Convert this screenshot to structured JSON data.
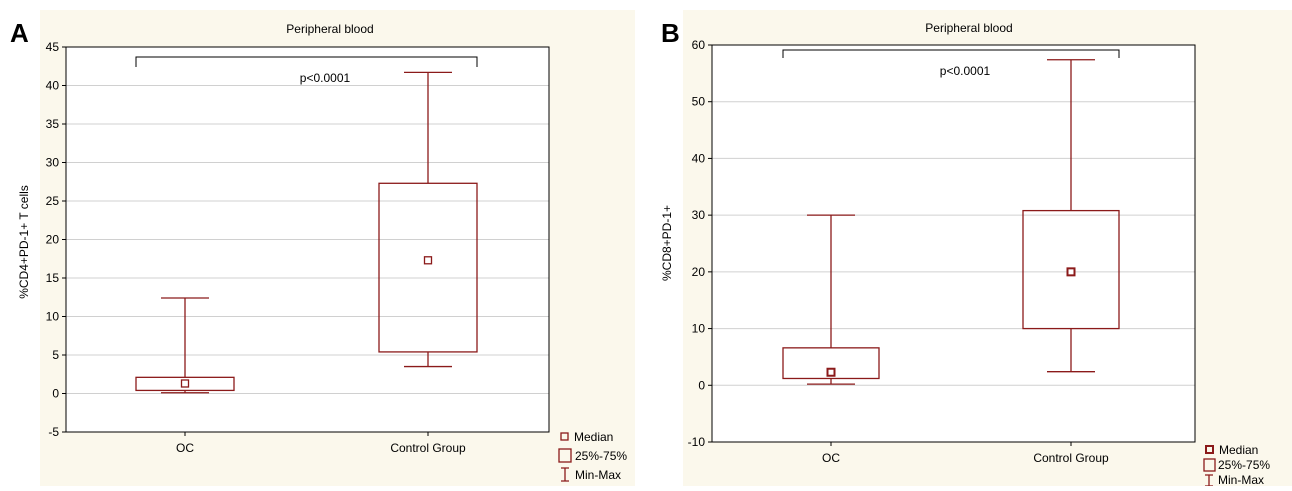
{
  "colors": {
    "box": "#8b1a1a",
    "panel_bg": "#fbf8ec",
    "grid": "#d0d0d0"
  },
  "legend": {
    "median": "Median",
    "box": "25%-75%",
    "whisker": "Min-Max"
  },
  "chart_data": [
    {
      "panel": "A",
      "type": "box",
      "title": "Peripheral blood",
      "xlabel": "",
      "ylabel": "%CD4+PD-1+ T cells",
      "ylim": [
        -5,
        45
      ],
      "yticks": [
        -5,
        0,
        5,
        10,
        15,
        20,
        25,
        30,
        35,
        40,
        45
      ],
      "grid": true,
      "legend_position": "bottom-right",
      "annotation": "p<0.0001",
      "categories": [
        "OC",
        "Control Group"
      ],
      "boxes": [
        {
          "name": "OC",
          "min": 0.1,
          "q1": 0.4,
          "median": 1.3,
          "q3": 2.1,
          "max": 12.4
        },
        {
          "name": "Control Group",
          "min": 3.5,
          "q1": 5.4,
          "median": 17.3,
          "q3": 27.3,
          "max": 41.7
        }
      ]
    },
    {
      "panel": "B",
      "type": "box",
      "title": "Peripheral blood",
      "xlabel": "",
      "ylabel": "%CD8+PD-1+",
      "ylim": [
        -10,
        60
      ],
      "yticks": [
        -10,
        0,
        10,
        20,
        30,
        40,
        50,
        60
      ],
      "grid": true,
      "legend_position": "bottom-right",
      "annotation": "p<0.0001",
      "categories": [
        "OC",
        "Control Group"
      ],
      "boxes": [
        {
          "name": "OC",
          "min": 0.2,
          "q1": 1.2,
          "median": 2.3,
          "q3": 6.6,
          "max": 30.0
        },
        {
          "name": "Control Group",
          "min": 2.4,
          "q1": 10.0,
          "median": 20.0,
          "q3": 30.8,
          "max": 57.4
        }
      ]
    }
  ]
}
